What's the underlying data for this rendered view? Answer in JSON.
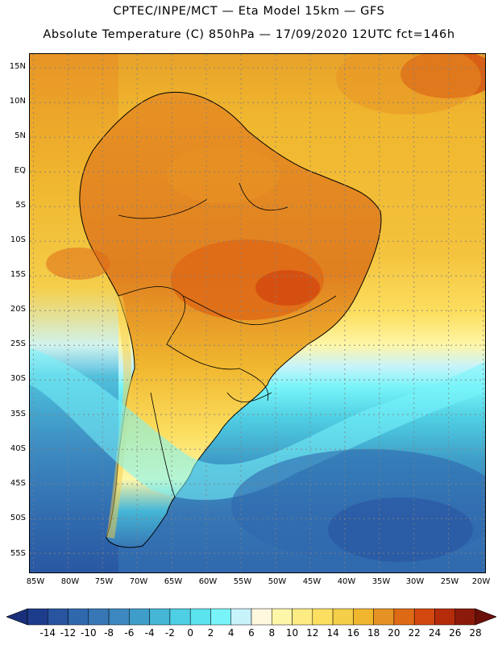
{
  "title_line1": "CPTEC/INPE/MCT —  Eta Model 15km — GFS",
  "title_line2": "Absolute Temperature (C) 850hPa — 17/09/2020 12UTC fct=146h",
  "lat_labels": [
    "15N",
    "10N",
    "5N",
    "EQ",
    "5S",
    "10S",
    "15S",
    "20S",
    "25S",
    "30S",
    "35S",
    "40S",
    "45S",
    "50S",
    "55S"
  ],
  "lon_labels": [
    "85W",
    "80W",
    "75W",
    "70W",
    "65W",
    "60W",
    "55W",
    "50W",
    "45W",
    "40W",
    "35W",
    "30W",
    "25W",
    "20W"
  ],
  "colorbar": {
    "labels": [
      "-14",
      "-12",
      "-10",
      "-8",
      "-6",
      "-4",
      "-2",
      "0",
      "2",
      "4",
      "6",
      "8",
      "10",
      "12",
      "14",
      "16",
      "18",
      "20",
      "22",
      "24",
      "26",
      "28"
    ],
    "colors": [
      "#1e3c8c",
      "#2854a0",
      "#2f68ad",
      "#3777b5",
      "#3d88c0",
      "#3f9ec9",
      "#45b6d6",
      "#4fcfe3",
      "#5be3ee",
      "#78f4f9",
      "#c9f3fa",
      "#fff8df",
      "#fef6a8",
      "#fdeb83",
      "#fcdf60",
      "#f5ce4a",
      "#f0b62e",
      "#e79224",
      "#de6a16",
      "#d2480f",
      "#b52c0b",
      "#8b1a0a"
    ],
    "under_color": "#1a2f7a",
    "over_color": "#6b0f0a"
  },
  "map": {
    "extent": {
      "lon_min": -85.5,
      "lon_max": -19.5,
      "lat_min": -58.0,
      "lat_max": 17.0
    },
    "ocean_colors": {
      "tropical": "#f0b62e",
      "subtropical": "#f5ce4a",
      "front": "#c9f3fa",
      "cold": "#3d88c0",
      "deep_cold": "#2854a0"
    }
  }
}
